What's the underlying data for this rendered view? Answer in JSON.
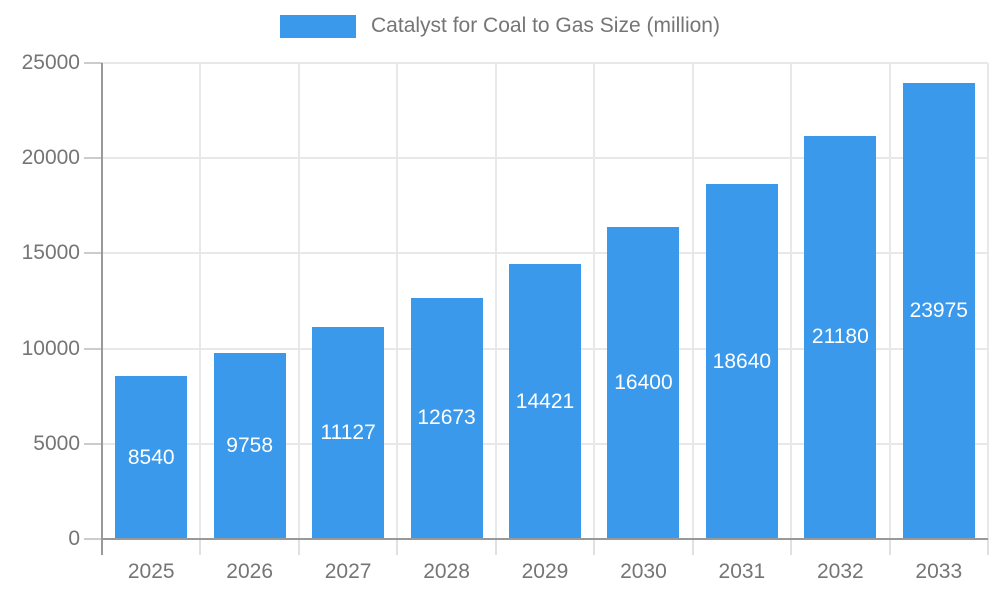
{
  "chart_data": {
    "type": "bar",
    "title": "Catalyst for Coal to Gas Size (million)",
    "series_name": "Catalyst for Coal to Gas Size (million)",
    "categories": [
      "2025",
      "2026",
      "2027",
      "2028",
      "2029",
      "2030",
      "2031",
      "2032",
      "2033"
    ],
    "values": [
      8540,
      9758,
      11127,
      12673,
      14421,
      16400,
      18640,
      21180,
      23975
    ],
    "xlabel": "",
    "ylabel": "",
    "ylim": [
      0,
      25000
    ],
    "yticks": [
      0,
      5000,
      10000,
      15000,
      20000,
      25000
    ],
    "ytick_labels": [
      "0",
      "5000",
      "10000",
      "15000",
      "20000",
      "25000"
    ],
    "grid": true,
    "legend_position": "top-center",
    "value_label_position": "inside-center",
    "colors": {
      "bar": "#3A99EB",
      "axis_line": "#999999",
      "grid_line": "#E8E8E8",
      "y_tick_mark": "#CCCCCC",
      "x_tick_mark": "#E0E0E0",
      "tick_text": "#757575",
      "value_label_text": "#FFFFFF",
      "background": "#FFFFFF"
    }
  }
}
